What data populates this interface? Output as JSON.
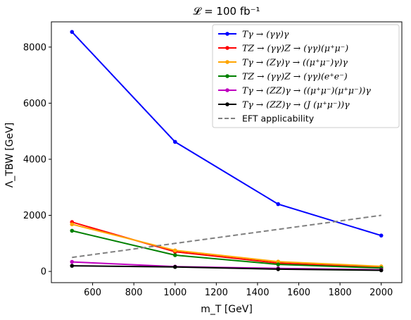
{
  "chart_data": {
    "type": "line",
    "title": "𝓛 = 100 fb⁻¹",
    "xlabel": "m_T [GeV]",
    "ylabel": "Λ_TBW [GeV]",
    "xlim": [
      400,
      2100
    ],
    "ylim": [
      -400,
      8900
    ],
    "xticks": [
      600,
      800,
      1000,
      1200,
      1400,
      1600,
      1800,
      2000
    ],
    "yticks": [
      0,
      2000,
      4000,
      6000,
      8000
    ],
    "x": [
      500,
      1000,
      1500,
      2000
    ],
    "legend_placement": "upper right",
    "grid": false,
    "series": [
      {
        "name": "Tγ → (γγ)γ",
        "color": "#0000ff",
        "style": "solid-marker",
        "values": [
          8540,
          4620,
          2400,
          1280
        ]
      },
      {
        "name": "TZ → (γγ)Z → (γγ)(μ⁺μ⁻)",
        "color": "#ff0000",
        "style": "solid-marker",
        "values": [
          1760,
          700,
          300,
          140
        ]
      },
      {
        "name": "Tγ → (Zγ)γ → ((μ⁺μ⁻)γ)γ",
        "color": "#ffa500",
        "style": "solid-marker",
        "values": [
          1680,
          750,
          350,
          180
        ]
      },
      {
        "name": "TZ → (γγ)Z → (γγ)(e⁺e⁻)",
        "color": "#008000",
        "style": "solid-marker",
        "values": [
          1450,
          580,
          250,
          120
        ]
      },
      {
        "name": "Tγ → (ZZ)γ → ((μ⁺μ⁻)(μ⁺μ⁻))γ",
        "color": "#bf00bf",
        "style": "solid-marker",
        "values": [
          340,
          170,
          110,
          60
        ]
      },
      {
        "name": "Tγ → (ZZ)γ → (J (μ⁺μ⁻))γ",
        "color": "#000000",
        "style": "solid-marker",
        "values": [
          200,
          160,
          80,
          40
        ]
      },
      {
        "name": "EFT applicability",
        "color": "#808080",
        "style": "dashed",
        "values": [
          500,
          1000,
          1500,
          2000
        ]
      }
    ]
  }
}
